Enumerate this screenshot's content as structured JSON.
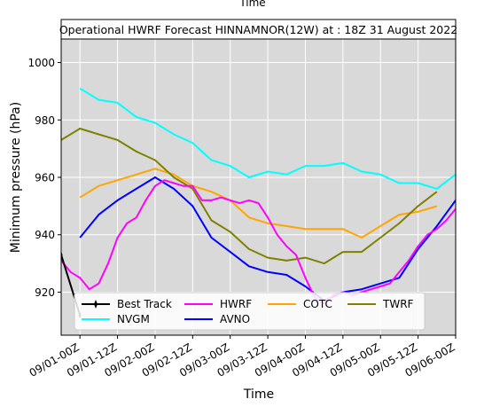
{
  "chart_data": {
    "type": "line",
    "top_label": "Time",
    "title": "Operational HWRF Forecast HINNAMNOR(12W) at : 18Z 31 August 2022",
    "xlabel": "Time",
    "ylabel": "Minimum pressure (hPa)",
    "x_ticks": [
      "09/01-00Z",
      "09/01-12Z",
      "09/02-00Z",
      "09/02-12Z",
      "09/03-00Z",
      "09/03-12Z",
      "09/04-00Z",
      "09/04-12Z",
      "09/05-00Z",
      "09/05-12Z",
      "09/06-00Z"
    ],
    "y_ticks": [
      920,
      940,
      960,
      980,
      1000
    ],
    "xlim_hours_from_0831_18Z": [
      0,
      126
    ],
    "ylim": [
      905,
      1015
    ],
    "grid": true,
    "background": "#d9d9d9",
    "legend_placement": "lower-left",
    "series": [
      {
        "name": "Best Track",
        "color": "#000000",
        "marker": "diamond",
        "x": [
          0,
          6
        ],
        "y": [
          933,
          912
        ]
      },
      {
        "name": "HWRF",
        "color": "#ff00ff",
        "x": [
          0,
          3,
          6,
          9,
          12,
          15,
          18,
          21,
          24,
          27,
          30,
          33,
          36,
          39,
          42,
          45,
          48,
          51,
          54,
          57,
          60,
          63,
          66,
          69,
          72,
          75,
          78,
          81,
          84,
          87,
          90,
          93,
          96,
          99,
          102,
          105,
          108,
          111,
          114,
          117,
          120,
          123,
          126
        ],
        "y": [
          931,
          927,
          925,
          921,
          923,
          930,
          939,
          944,
          946,
          952,
          957,
          959,
          958,
          957,
          957,
          952,
          952,
          953,
          952,
          951,
          952,
          951,
          946,
          940,
          936,
          933,
          925,
          918,
          916,
          919,
          920,
          919,
          920,
          921,
          922,
          923,
          927,
          931,
          936,
          940,
          942,
          945,
          949
        ]
      },
      {
        "name": "NVGM",
        "color": "#00ffff",
        "x": [
          6,
          12,
          18,
          24,
          30,
          36,
          42,
          48,
          54,
          60,
          66,
          72,
          78,
          84,
          90,
          96,
          102,
          108,
          114,
          120,
          126
        ],
        "y": [
          991,
          987,
          986,
          981,
          979,
          975,
          972,
          966,
          964,
          960,
          962,
          961,
          964,
          964,
          965,
          962,
          961,
          958,
          958,
          956,
          961
        ]
      },
      {
        "name": "AVNO",
        "color": "#0000ff",
        "x": [
          6,
          12,
          18,
          24,
          30,
          36,
          42,
          48,
          54,
          60,
          66,
          72,
          78,
          84,
          90,
          96,
          102,
          108,
          114,
          120,
          126
        ],
        "y": [
          939,
          947,
          952,
          956,
          960,
          956,
          950,
          939,
          934,
          929,
          927,
          926,
          922,
          917,
          920,
          921,
          923,
          925,
          935,
          943,
          952
        ]
      },
      {
        "name": "COTC",
        "color": "#ffa500",
        "x": [
          6,
          12,
          18,
          24,
          30,
          36,
          42,
          48,
          54,
          60,
          66,
          72,
          78,
          84,
          90,
          96,
          102,
          108,
          114,
          120
        ],
        "y": [
          953,
          957,
          959,
          961,
          963,
          961,
          957,
          955,
          952,
          946,
          944,
          943,
          942,
          942,
          942,
          939,
          943,
          947,
          948,
          950
        ]
      },
      {
        "name": "TWRF",
        "color": "#808000",
        "x": [
          0,
          6,
          12,
          18,
          24,
          30,
          36,
          42,
          48,
          54,
          60,
          66,
          72,
          78,
          84,
          90,
          96,
          102,
          108,
          114,
          120
        ],
        "y": [
          973,
          977,
          975,
          973,
          969,
          966,
          960,
          956,
          945,
          941,
          935,
          932,
          931,
          932,
          930,
          934,
          934,
          939,
          944,
          950,
          955
        ]
      }
    ]
  }
}
